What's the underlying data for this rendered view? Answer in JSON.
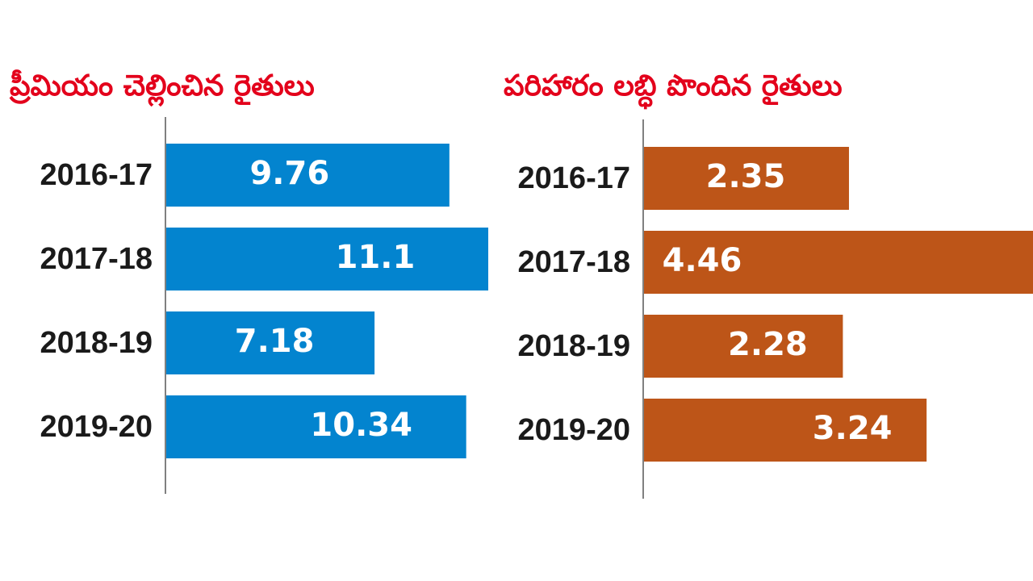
{
  "colors": {
    "title": "#e3001b",
    "axis": "#808080",
    "text": "#1a1a1a",
    "left_bar": "#0384cf",
    "right_bar": "#bd5518"
  },
  "chart_data": [
    {
      "type": "bar",
      "orientation": "horizontal",
      "title": "ప్రీమియం చెల్లించిన రైతులు",
      "categories": [
        "2016-17",
        "2017-18",
        "2018-19",
        "2019-20"
      ],
      "values": [
        9.76,
        11.1,
        7.18,
        10.34
      ],
      "value_labels": [
        "9.76",
        "11.1",
        "7.18",
        "10.34"
      ],
      "xlim": [
        0,
        11.1
      ],
      "grid": false,
      "legend": "none"
    },
    {
      "type": "bar",
      "orientation": "horizontal",
      "title": "పరిహారం లబ్ధి పొందిన రైతులు",
      "categories": [
        "2016-17",
        "2017-18",
        "2018-19",
        "2019-20"
      ],
      "values": [
        2.35,
        4.46,
        2.28,
        3.24
      ],
      "value_labels": [
        "2.35",
        "4.46",
        "2.28",
        "3.24"
      ],
      "xlim": [
        0,
        4.46
      ],
      "grid": false,
      "legend": "none"
    }
  ]
}
